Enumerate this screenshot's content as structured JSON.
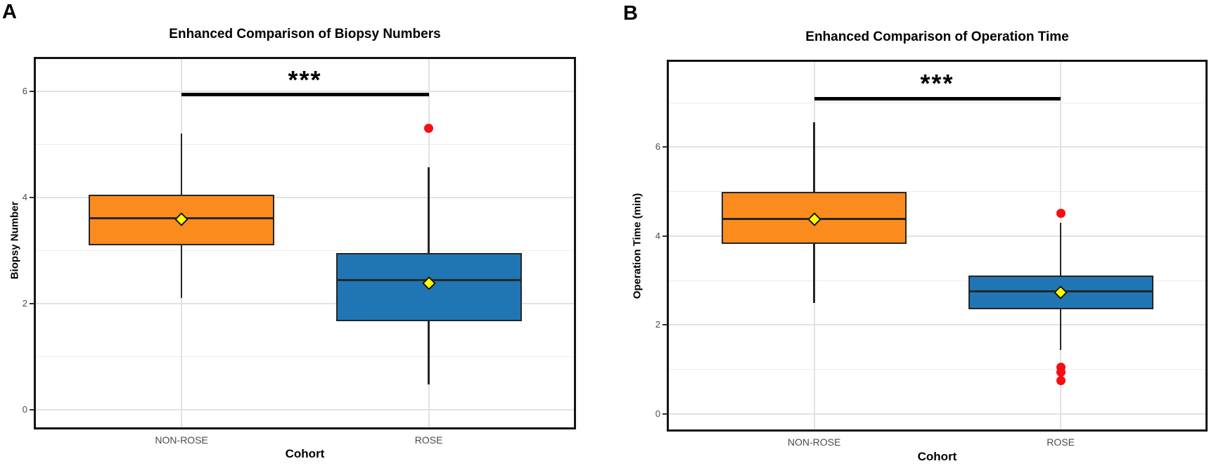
{
  "figure": {
    "background": "#ffffff",
    "panel_letters": [
      "A",
      "B"
    ]
  },
  "colors": {
    "non_rose_fill": "#FB8B1C",
    "rose_fill": "#2076B4",
    "outlier_red": "#F80D13",
    "mean_diamond_yellow": "#FFFF00",
    "box_outline": "#262626",
    "grid_major": "#E2E2E2",
    "grid_minor": "#EDEDED",
    "panel_border": "#141414",
    "tick_mark": "#333333",
    "tick_text": "#4a4a4a",
    "sig_bar": "#000000"
  },
  "chart_data": [
    {
      "type": "box",
      "panel_letter": "A",
      "title": "Enhanced Comparison of Biopsy Numbers",
      "xlabel": "Cohort",
      "ylabel": "Biopsy Number",
      "categories": [
        "NON-ROSE",
        "ROSE"
      ],
      "yticks": [
        0,
        2,
        4,
        6
      ],
      "ylim": [
        -0.36,
        6.63
      ],
      "grid": true,
      "boxes": [
        {
          "category": "NON-ROSE",
          "fill": "#FB8B1C",
          "whisker_low": 2.1,
          "q1": 3.1,
          "median": 3.6,
          "q3": 4.05,
          "whisker_high": 5.2,
          "mean": 3.58,
          "outliers": []
        },
        {
          "category": "ROSE",
          "fill": "#2076B4",
          "whisker_low": 0.47,
          "q1": 1.67,
          "median": 2.44,
          "q3": 2.95,
          "whisker_high": 4.57,
          "mean": 2.38,
          "outliers": [
            5.3
          ]
        }
      ],
      "significance": {
        "label": "***",
        "bar_y": 5.93
      }
    },
    {
      "type": "box",
      "panel_letter": "B",
      "title": "Enhanced Comparison of Operation Time",
      "xlabel": "Cohort",
      "ylabel": "Operation Time (min)",
      "categories": [
        "NON-ROSE",
        "ROSE"
      ],
      "yticks": [
        0,
        2,
        4,
        6
      ],
      "ylim": [
        -0.38,
        7.95
      ],
      "grid": true,
      "boxes": [
        {
          "category": "NON-ROSE",
          "fill": "#FB8B1C",
          "whisker_low": 2.49,
          "q1": 3.83,
          "median": 4.39,
          "q3": 5.0,
          "whisker_high": 6.56,
          "mean": 4.38,
          "outliers": []
        },
        {
          "category": "ROSE",
          "fill": "#2076B4",
          "whisker_low": 1.43,
          "q1": 2.35,
          "median": 2.76,
          "q3": 3.12,
          "whisker_high": 4.3,
          "mean": 2.74,
          "outliers": [
            4.52,
            1.05,
            0.94,
            0.75
          ]
        }
      ],
      "significance": {
        "label": "***",
        "bar_y": 7.09
      }
    }
  ]
}
